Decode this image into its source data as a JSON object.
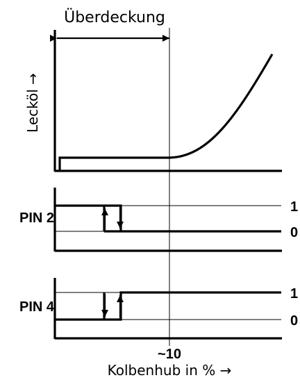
{
  "overlap_label": "Überdeckung",
  "y_axis_label": "Lecköl →",
  "x_axis_label": "Kolbenhub in % →",
  "x_tick_label": "~10",
  "pins": [
    {
      "name": "PIN 2",
      "high_label": "1",
      "low_label": "0"
    },
    {
      "name": "PIN 4",
      "high_label": "1",
      "low_label": "0"
    }
  ]
}
